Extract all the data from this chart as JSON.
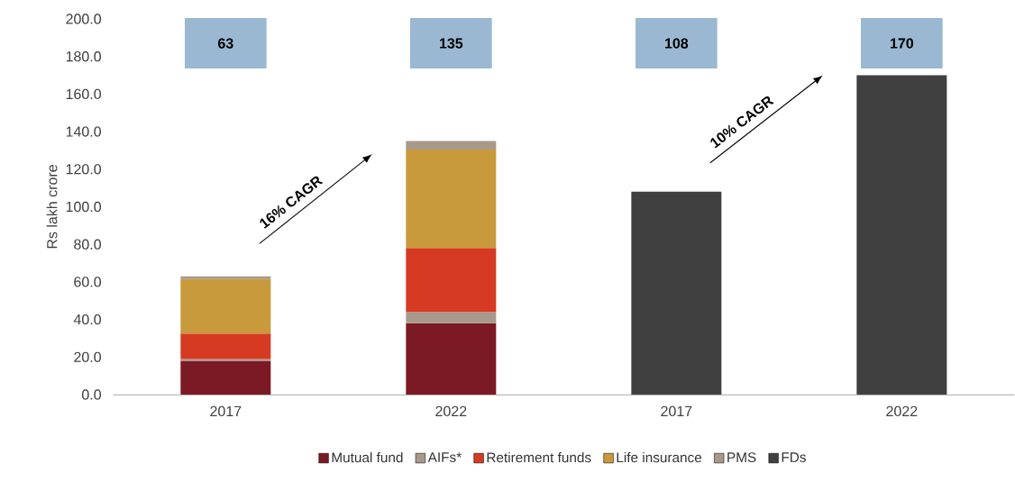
{
  "chart_data": {
    "type": "bar",
    "stacked": true,
    "categories": [
      "2017",
      "2022",
      "2017",
      "2022"
    ],
    "series": [
      {
        "name": "Mutual fund",
        "color": "#7b1a24",
        "values": [
          18,
          38,
          null,
          null
        ]
      },
      {
        "name": "AIFs*",
        "color": "#a89a8a",
        "values": [
          1,
          6,
          null,
          null
        ]
      },
      {
        "name": "Retirement funds",
        "color": "#d63a22",
        "values": [
          13.5,
          34,
          null,
          null
        ]
      },
      {
        "name": "Life insurance",
        "color": "#c89a3c",
        "values": [
          29,
          52.5,
          null,
          null
        ]
      },
      {
        "name": "PMS",
        "color": "#a89a8a",
        "values": [
          1.5,
          4.5,
          null,
          null
        ]
      },
      {
        "name": "FDs",
        "color": "#404040",
        "values": [
          null,
          null,
          108,
          170
        ]
      }
    ],
    "ylabel": "Rs lakh crore",
    "ylim": [
      0,
      200
    ],
    "yticks": [
      {
        "value": 0,
        "label": "0.0"
      },
      {
        "value": 20,
        "label": "20.0"
      },
      {
        "value": 40,
        "label": "40.0"
      },
      {
        "value": 60,
        "label": "60.0"
      },
      {
        "value": 80,
        "label": "80.0"
      },
      {
        "value": 100,
        "label": "100.0"
      },
      {
        "value": 120,
        "label": "120.0"
      },
      {
        "value": 140,
        "label": "140.0"
      },
      {
        "value": 160,
        "label": "160.0"
      },
      {
        "value": 180,
        "label": "180.0"
      },
      {
        "value": 200,
        "label": "200.0"
      }
    ],
    "annotations": [
      "63",
      "135",
      "108",
      "170",
      "16% CAGR",
      "10% CAGR"
    ],
    "legend": "bottom",
    "grid": false
  }
}
